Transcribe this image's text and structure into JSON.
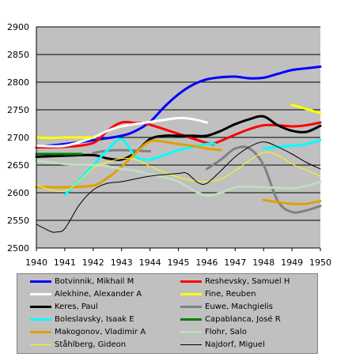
{
  "chart_data": {
    "type": "line",
    "title": "",
    "xlabel": "",
    "ylabel": "",
    "xlim": [
      1940,
      1950
    ],
    "ylim": [
      2500,
      2900
    ],
    "x_ticks": [
      "1940",
      "1941",
      "1942",
      "1943",
      "1944",
      "1945",
      "1946",
      "1947",
      "1948",
      "1949",
      "1950"
    ],
    "y_ticks": [
      "2500",
      "2550",
      "2600",
      "2650",
      "2700",
      "2750",
      "2800",
      "2850",
      "2900"
    ],
    "grid": "horizontal",
    "plot_background": "#c0c0c0",
    "legend_position": "bottom",
    "series": [
      {
        "name": "Botvinnik, Mikhail M",
        "color": "#0000ff",
        "weight": "thick",
        "points": [
          [
            1940,
            2683
          ],
          [
            1941,
            2688
          ],
          [
            1942,
            2695
          ],
          [
            1943,
            2703
          ],
          [
            1943.5,
            2712
          ],
          [
            1944,
            2728
          ],
          [
            1944.5,
            2755
          ],
          [
            1945,
            2778
          ],
          [
            1945.5,
            2795
          ],
          [
            1946,
            2805
          ],
          [
            1946.5,
            2809
          ],
          [
            1947,
            2810
          ],
          [
            1947.5,
            2807
          ],
          [
            1948,
            2808
          ],
          [
            1948.5,
            2815
          ],
          [
            1949,
            2822
          ],
          [
            1949.5,
            2825
          ],
          [
            1950,
            2828
          ]
        ]
      },
      {
        "name": "Reshevsky, Samuel H",
        "color": "#ff0000",
        "weight": "thick",
        "points": [
          [
            1940,
            2682
          ],
          [
            1941,
            2683
          ],
          [
            1942,
            2690
          ],
          [
            1942.5,
            2712
          ],
          [
            1943,
            2727
          ],
          [
            1943.5,
            2726
          ],
          [
            1944,
            2723
          ],
          [
            1946,
            2690
          ],
          [
            1946.3,
            2690
          ],
          [
            1947,
            2705
          ],
          [
            1947.5,
            2715
          ],
          [
            1948,
            2722
          ],
          [
            1948.5,
            2722
          ],
          [
            1949,
            2720
          ],
          [
            1949.5,
            2722
          ],
          [
            1950,
            2727
          ]
        ]
      },
      {
        "name": "Alekhine, Alexander A",
        "color": "#ffffff",
        "weight": "thick",
        "points": [
          [
            1940,
            2685
          ],
          [
            1941,
            2685
          ],
          [
            1942,
            2700
          ],
          [
            1942.5,
            2712
          ],
          [
            1943,
            2720
          ],
          [
            1944,
            2728
          ],
          [
            1945,
            2735
          ],
          [
            1945.5,
            2733
          ],
          [
            1946,
            2727
          ]
        ]
      },
      {
        "name": "Fine, Reuben",
        "color": "#ffff00",
        "weight": "thick",
        "points": [
          [
            1940,
            2700
          ],
          [
            1940.5,
            2699
          ],
          [
            1941,
            2700
          ],
          [
            1941.5,
            2700
          ],
          [
            1942,
            2700
          ]
        ]
      },
      {
        "name": "Fine, Reuben (1949-1950)",
        "color": "#ffff00",
        "weight": "thick",
        "points": [
          [
            1949,
            2759
          ],
          [
            1950,
            2744
          ]
        ]
      },
      {
        "name": "Keres, Paul",
        "color": "#000000",
        "weight": "thick",
        "points": [
          [
            1940,
            2665
          ],
          [
            1941,
            2667
          ],
          [
            1942,
            2668
          ],
          [
            1942.5,
            2662
          ],
          [
            1943,
            2660
          ],
          [
            1943.5,
            2673
          ],
          [
            1944,
            2697
          ],
          [
            1944.5,
            2703
          ],
          [
            1945,
            2703
          ],
          [
            1945.5,
            2703
          ],
          [
            1946,
            2703
          ],
          [
            1946.5,
            2712
          ],
          [
            1947,
            2724
          ],
          [
            1947.5,
            2733
          ],
          [
            1948,
            2738
          ],
          [
            1948.5,
            2722
          ],
          [
            1949,
            2712
          ],
          [
            1949.5,
            2710
          ],
          [
            1950,
            2721
          ]
        ]
      },
      {
        "name": "Euwe, Machgielis",
        "color": "#808080",
        "weight": "thick",
        "points": [
          [
            1942,
            2672
          ],
          [
            1942.5,
            2676
          ],
          [
            1943,
            2677
          ],
          [
            1944,
            2675
          ]
        ]
      },
      {
        "name": "Euwe, Machgielis (1946-1950)",
        "color": "#808080",
        "weight": "thick",
        "points": [
          [
            1946,
            2643
          ],
          [
            1946.5,
            2660
          ],
          [
            1947,
            2680
          ],
          [
            1947.5,
            2680
          ],
          [
            1948,
            2650
          ],
          [
            1948.5,
            2585
          ],
          [
            1949,
            2565
          ],
          [
            1949.5,
            2568
          ],
          [
            1950,
            2576
          ]
        ]
      },
      {
        "name": "Boleslavsky, Isaak E",
        "color": "#00ffff",
        "weight": "thick",
        "points": [
          [
            1941,
            2596
          ],
          [
            1941.5,
            2622
          ],
          [
            1942,
            2650
          ],
          [
            1942.5,
            2677
          ],
          [
            1943,
            2697
          ],
          [
            1943.5,
            2665
          ],
          [
            1944,
            2660
          ],
          [
            1944.5,
            2668
          ],
          [
            1945,
            2677
          ],
          [
            1945.5,
            2683
          ],
          [
            1946,
            2688
          ],
          [
            1946.3,
            2688
          ]
        ]
      },
      {
        "name": "Boleslavsky, Isaak E (1948-1950)",
        "color": "#00ffff",
        "weight": "thick",
        "points": [
          [
            1948,
            2680
          ],
          [
            1948.5,
            2683
          ],
          [
            1949,
            2685
          ],
          [
            1949.5,
            2688
          ],
          [
            1950,
            2695
          ]
        ]
      },
      {
        "name": "Capablanca, José R",
        "color": "#008000",
        "weight": "thick",
        "points": [
          [
            1940,
            2670
          ],
          [
            1941,
            2670
          ],
          [
            1941.6,
            2670
          ]
        ]
      },
      {
        "name": "Makogonov, Vladimir A",
        "color": "#e0a000",
        "weight": "thick",
        "points": [
          [
            1940,
            2610
          ],
          [
            1941,
            2610
          ],
          [
            1942,
            2613
          ],
          [
            1942.5,
            2627
          ],
          [
            1943,
            2647
          ],
          [
            1943.5,
            2672
          ],
          [
            1944,
            2693
          ],
          [
            1944.5,
            2692
          ],
          [
            1945,
            2688
          ],
          [
            1945.5,
            2685
          ],
          [
            1946,
            2680
          ],
          [
            1946.5,
            2677
          ]
        ]
      },
      {
        "name": "Makogonov, Vladimir A (1948-1950)",
        "color": "#e0a000",
        "weight": "thick",
        "points": [
          [
            1948,
            2587
          ],
          [
            1948.5,
            2583
          ],
          [
            1949,
            2580
          ],
          [
            1949.5,
            2580
          ],
          [
            1950,
            2585
          ]
        ]
      },
      {
        "name": "Flohr, Salo",
        "color": "#c0dcc0",
        "weight": "thick",
        "points": [
          [
            1940,
            2658
          ],
          [
            1941,
            2652
          ],
          [
            1942,
            2650
          ],
          [
            1942.5,
            2648
          ],
          [
            1943,
            2643
          ],
          [
            1943.5,
            2640
          ],
          [
            1944,
            2633
          ],
          [
            1944.5,
            2628
          ],
          [
            1945,
            2620
          ],
          [
            1945.5,
            2605
          ],
          [
            1946,
            2595
          ],
          [
            1946.5,
            2600
          ],
          [
            1947,
            2610
          ],
          [
            1947.5,
            2611
          ],
          [
            1948,
            2610
          ],
          [
            1948.5,
            2609
          ],
          [
            1949,
            2608
          ],
          [
            1949.5,
            2612
          ],
          [
            1950,
            2620
          ]
        ]
      },
      {
        "name": "Ståhlberg, Gideon",
        "color": "#ffff00",
        "weight": "thin",
        "points": [
          [
            1940,
            2614
          ],
          [
            1941,
            2603
          ],
          [
            1942,
            2645
          ],
          [
            1942.5,
            2655
          ],
          [
            1943,
            2662
          ],
          [
            1943.5,
            2660
          ],
          [
            1944,
            2648
          ],
          [
            1944.5,
            2637
          ],
          [
            1945,
            2628
          ],
          [
            1945.5,
            2622
          ],
          [
            1946,
            2620
          ],
          [
            1946.5,
            2625
          ],
          [
            1947,
            2640
          ],
          [
            1947.5,
            2658
          ],
          [
            1948,
            2673
          ],
          [
            1948.5,
            2668
          ],
          [
            1949,
            2652
          ],
          [
            1949.5,
            2641
          ],
          [
            1950,
            2630
          ]
        ]
      },
      {
        "name": "Najdorf, Miguel",
        "color": "#000000",
        "weight": "thin",
        "points": [
          [
            1940,
            2543
          ],
          [
            1940.5,
            2530
          ],
          [
            1940.7,
            2529
          ],
          [
            1941,
            2535
          ],
          [
            1941.5,
            2577
          ],
          [
            1942,
            2605
          ],
          [
            1942.5,
            2617
          ],
          [
            1943,
            2620
          ],
          [
            1944,
            2630
          ],
          [
            1945,
            2635
          ],
          [
            1945.3,
            2635
          ],
          [
            1945.7,
            2618
          ],
          [
            1946,
            2617
          ],
          [
            1946.5,
            2640
          ],
          [
            1947,
            2665
          ],
          [
            1947.5,
            2683
          ],
          [
            1948,
            2692
          ],
          [
            1948.5,
            2683
          ],
          [
            1949,
            2670
          ],
          [
            1949.5,
            2655
          ],
          [
            1950,
            2643
          ]
        ]
      }
    ],
    "legend": [
      {
        "label": "Botvinnik, Mikhail M",
        "color": "#0000ff",
        "weight": "thick"
      },
      {
        "label": "Reshevsky, Samuel H",
        "color": "#ff0000",
        "weight": "thick"
      },
      {
        "label": "Alekhine, Alexander A",
        "color": "#ffffff",
        "weight": "thick"
      },
      {
        "label": "Fine, Reuben",
        "color": "#ffff00",
        "weight": "thick"
      },
      {
        "label": "Keres, Paul",
        "color": "#000000",
        "weight": "thick"
      },
      {
        "label": "Euwe, Machgielis",
        "color": "#808080",
        "weight": "thick"
      },
      {
        "label": "Boleslavsky, Isaak E",
        "color": "#00ffff",
        "weight": "thick"
      },
      {
        "label": "Capablanca, José R",
        "color": "#008000",
        "weight": "thick"
      },
      {
        "label": "Makogonov, Vladimir A",
        "color": "#e0a000",
        "weight": "thick"
      },
      {
        "label": "Flohr, Salo",
        "color": "#c0dcc0",
        "weight": "thick"
      },
      {
        "label": "Ståhlberg, Gideon",
        "color": "#ffff00",
        "weight": "thin"
      },
      {
        "label": "Najdorf, Miguel",
        "color": "#000000",
        "weight": "thin"
      }
    ]
  }
}
